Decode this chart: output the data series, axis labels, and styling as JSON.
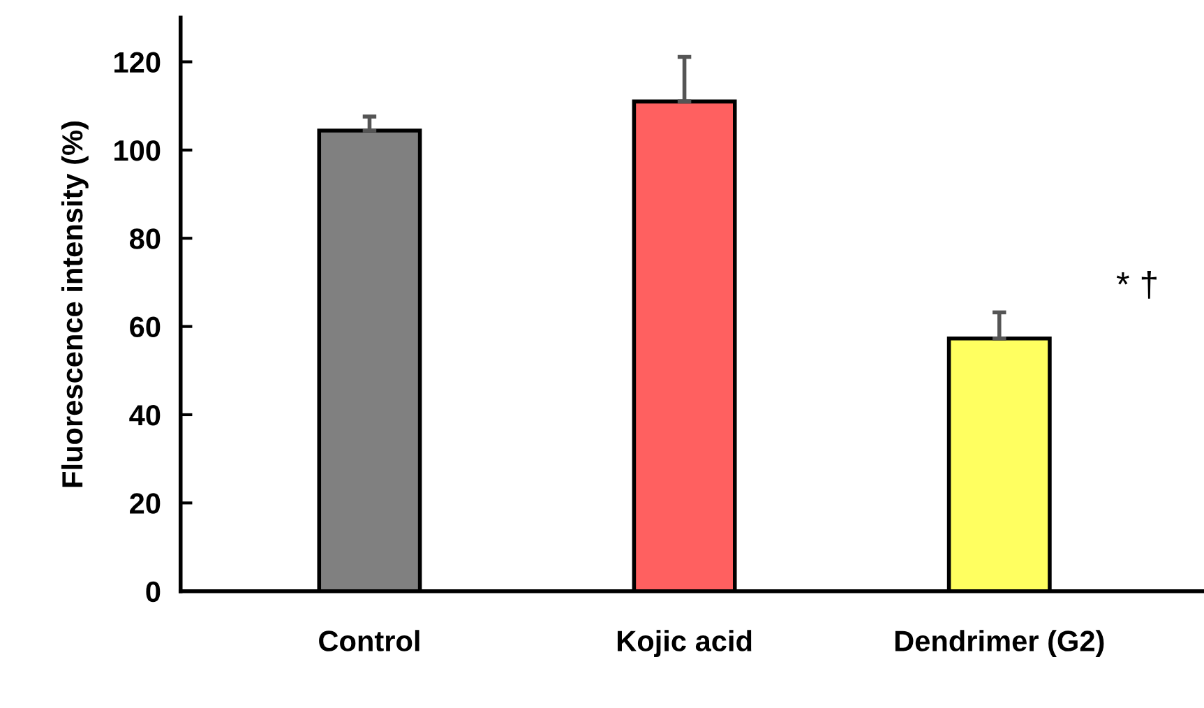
{
  "chart_data": {
    "type": "bar",
    "ylabel": "Fluorescence intensity (%)",
    "categories": [
      "Control",
      "Kojic acid",
      "Dendrimer (G2)"
    ],
    "values": [
      104.4,
      111,
      57.3
    ],
    "errors": [
      [
        104.4,
        107.6
      ],
      [
        111,
        121.1
      ],
      [
        57.3,
        63.2
      ]
    ],
    "colors": [
      "#808080",
      "#ff6060",
      "#ffff60"
    ],
    "ylim": [
      0,
      130
    ],
    "yticks": [
      0,
      20,
      40,
      60,
      80,
      100,
      120
    ],
    "grid": false,
    "legend": false,
    "annotations": [
      "* †"
    ]
  }
}
